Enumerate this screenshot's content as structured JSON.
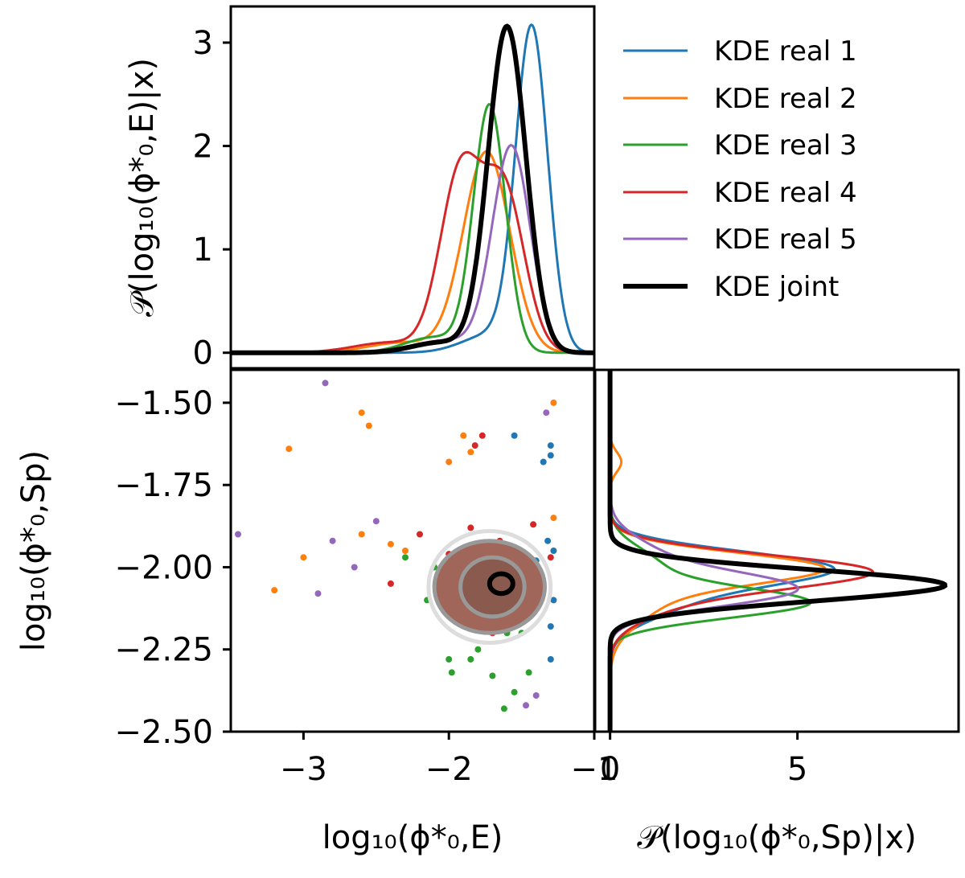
{
  "colors": {
    "real1": "#1f77b4",
    "real2": "#ff7f0e",
    "real3": "#2ca02c",
    "real4": "#d62728",
    "real5": "#9467bd",
    "joint": "#000000",
    "contour_inner": "#a0665a",
    "contour_mid": "#999999",
    "contour_outer": "#dddddd"
  },
  "labels": {
    "top_ylabel": "𝒫(log₁₀(ϕ*₀,E)|x)",
    "main_xlabel": "log₁₀(ϕ*₀,E)",
    "main_ylabel": "log₁₀(ϕ*₀,Sp)",
    "right_xlabel": "𝒫(log₁₀(ϕ*₀,Sp)|x)"
  },
  "legend": [
    {
      "label": "KDE real 1",
      "color": "#1f77b4"
    },
    {
      "label": "KDE real 2",
      "color": "#ff7f0e"
    },
    {
      "label": "KDE real 3",
      "color": "#2ca02c"
    },
    {
      "label": "KDE real 4",
      "color": "#d62728"
    },
    {
      "label": "KDE real 5",
      "color": "#9467bd"
    },
    {
      "label": "KDE joint",
      "color": "#000000"
    }
  ],
  "chart_data": [
    {
      "type": "line",
      "panel": "top-marginal",
      "xlim": [
        -3.5,
        -1.0
      ],
      "ylim": [
        -0.15,
        3.35
      ],
      "yticks": [
        0,
        1,
        2,
        3
      ],
      "ytick_labels": [
        "0",
        "1",
        "2",
        "3"
      ],
      "series": [
        {
          "name": "KDE real 1",
          "gaussians": [
            [
              3.1,
              -1.43,
              0.11
            ],
            [
              0.18,
              -1.7,
              0.2
            ]
          ]
        },
        {
          "name": "KDE real 2",
          "gaussians": [
            [
              1.94,
              -1.74,
              0.16
            ],
            [
              0.1,
              -2.3,
              0.25
            ]
          ]
        },
        {
          "name": "KDE real 3",
          "gaussians": [
            [
              2.38,
              -1.72,
              0.11
            ],
            [
              0.15,
              -2.1,
              0.2
            ]
          ]
        },
        {
          "name": "KDE real 4",
          "gaussians": [
            [
              1.72,
              -1.92,
              0.14
            ],
            [
              1.55,
              -1.62,
              0.14
            ],
            [
              0.1,
              -2.4,
              0.25
            ]
          ]
        },
        {
          "name": "KDE real 5",
          "gaussians": [
            [
              1.98,
              -1.57,
              0.13
            ],
            [
              0.12,
              -2.0,
              0.25
            ]
          ]
        },
        {
          "name": "KDE joint",
          "gaussians": [
            [
              3.15,
              -1.6,
              0.13
            ],
            [
              0.1,
              -2.05,
              0.2
            ]
          ]
        }
      ]
    },
    {
      "type": "scatter",
      "panel": "joint",
      "xlim": [
        -3.5,
        -1.0
      ],
      "ylim": [
        -2.5,
        -1.4
      ],
      "xticks": [
        -3,
        -2,
        -1
      ],
      "xtick_labels": [
        "−3",
        "−2",
        "−1"
      ],
      "yticks": [
        -1.5,
        -1.75,
        -2.0,
        -2.25,
        -2.5
      ],
      "ytick_labels": [
        "−1.50",
        "−1.75",
        "−2.00",
        "−2.25",
        "−2.50"
      ],
      "series": [
        {
          "name": "KDE real 1",
          "points": [
            [
              -1.3,
              -1.66
            ],
            [
              -1.3,
              -1.63
            ],
            [
              -1.35,
              -1.68
            ],
            [
              -1.55,
              -1.6
            ],
            [
              -1.32,
              -1.92
            ],
            [
              -1.28,
              -1.95
            ],
            [
              -1.38,
              -2.05
            ],
            [
              -1.28,
              -2.1
            ],
            [
              -1.3,
              -2.28
            ],
            [
              -1.3,
              -2.18
            ],
            [
              -1.5,
              -2.0
            ],
            [
              -1.4,
              -1.98
            ]
          ]
        },
        {
          "name": "KDE real 2",
          "points": [
            [
              -2.6,
              -1.53
            ],
            [
              -2.55,
              -1.57
            ],
            [
              -3.1,
              -1.64
            ],
            [
              -3.2,
              -2.07
            ],
            [
              -2.0,
              -1.68
            ],
            [
              -1.85,
              -1.65
            ],
            [
              -1.9,
              -1.6
            ],
            [
              -2.4,
              -1.93
            ],
            [
              -3.0,
              -1.97
            ],
            [
              -1.28,
              -1.85
            ],
            [
              -1.28,
              -1.5
            ],
            [
              -2.6,
              -1.9
            ],
            [
              -2.3,
              -1.95
            ]
          ]
        },
        {
          "name": "KDE real 3",
          "points": [
            [
              -1.85,
              -2.28
            ],
            [
              -1.7,
              -2.33
            ],
            [
              -1.62,
              -2.43
            ],
            [
              -1.55,
              -2.38
            ],
            [
              -1.98,
              -2.32
            ],
            [
              -1.45,
              -2.32
            ],
            [
              -2.3,
              -1.97
            ],
            [
              -2.15,
              -2.1
            ],
            [
              -2.1,
              -2.0
            ],
            [
              -1.6,
              -2.2
            ],
            [
              -1.8,
              -2.25
            ],
            [
              -2.0,
              -2.28
            ],
            [
              -1.5,
              -2.2
            ]
          ]
        },
        {
          "name": "KDE real 4",
          "points": [
            [
              -1.77,
              -1.6
            ],
            [
              -1.82,
              -1.63
            ],
            [
              -2.0,
              -1.96
            ],
            [
              -1.85,
              -1.88
            ],
            [
              -1.5,
              -2.1
            ],
            [
              -2.2,
              -1.9
            ],
            [
              -1.7,
              -2.2
            ],
            [
              -1.3,
              -1.97
            ],
            [
              -1.42,
              -1.87
            ],
            [
              -2.4,
              -2.05
            ],
            [
              -1.65,
              -1.92
            ],
            [
              -1.95,
              -2.15
            ]
          ]
        },
        {
          "name": "KDE real 5",
          "points": [
            [
              -2.85,
              -1.44
            ],
            [
              -1.33,
              -1.53
            ],
            [
              -2.8,
              -1.92
            ],
            [
              -3.45,
              -1.9
            ],
            [
              -2.5,
              -1.86
            ],
            [
              -2.9,
              -2.08
            ],
            [
              -2.65,
              -2.0
            ],
            [
              -1.38,
              -2.08
            ],
            [
              -1.4,
              -2.39
            ],
            [
              -1.47,
              -2.42
            ],
            [
              -1.85,
              -1.96
            ],
            [
              -1.6,
              -2.05
            ],
            [
              -2.0,
              -2.12
            ]
          ]
        }
      ],
      "contours": [
        {
          "level": "outer",
          "center": [
            -1.72,
            -2.06
          ],
          "radii": [
            0.42,
            0.17
          ],
          "fill": false
        },
        {
          "level": "middle",
          "center": [
            -1.72,
            -2.06
          ],
          "radii": [
            0.38,
            0.14
          ],
          "fill": true
        },
        {
          "level": "inner",
          "center": [
            -1.7,
            -2.06
          ],
          "radii": [
            0.22,
            0.09
          ],
          "fill": true
        },
        {
          "level": "core",
          "center": [
            -1.64,
            -2.05
          ],
          "radii": [
            0.08,
            0.03
          ],
          "fill": false
        }
      ]
    },
    {
      "type": "line",
      "panel": "right-marginal",
      "orientation": "horizontal",
      "xlim": [
        -0.4,
        9.3
      ],
      "ylim": [
        -2.5,
        -1.4
      ],
      "xticks": [
        0,
        5
      ],
      "xtick_labels": [
        "0",
        "5"
      ],
      "series": [
        {
          "name": "KDE real 1",
          "gaussians": [
            [
              5.5,
              -2.0,
              0.05
            ],
            [
              1.8,
              -2.1,
              0.06
            ]
          ]
        },
        {
          "name": "KDE real 2",
          "gaussians": [
            [
              4.8,
              -2.0,
              0.045
            ],
            [
              1.5,
              -2.08,
              0.08
            ],
            [
              0.3,
              -1.68,
              0.03
            ]
          ]
        },
        {
          "name": "KDE real 3",
          "gaussians": [
            [
              5.1,
              -2.11,
              0.045
            ],
            [
              1.3,
              -2.0,
              0.06
            ]
          ]
        },
        {
          "name": "KDE real 4",
          "gaussians": [
            [
              6.5,
              -2.01,
              0.05
            ],
            [
              1.5,
              -2.1,
              0.06
            ]
          ]
        },
        {
          "name": "KDE real 5",
          "gaussians": [
            [
              4.7,
              -2.07,
              0.05
            ],
            [
              1.2,
              -1.97,
              0.06
            ]
          ]
        },
        {
          "name": "KDE joint",
          "gaussians": [
            [
              8.3,
              -2.05,
              0.045
            ],
            [
              1.3,
              -2.1,
              0.04
            ]
          ]
        }
      ]
    }
  ]
}
